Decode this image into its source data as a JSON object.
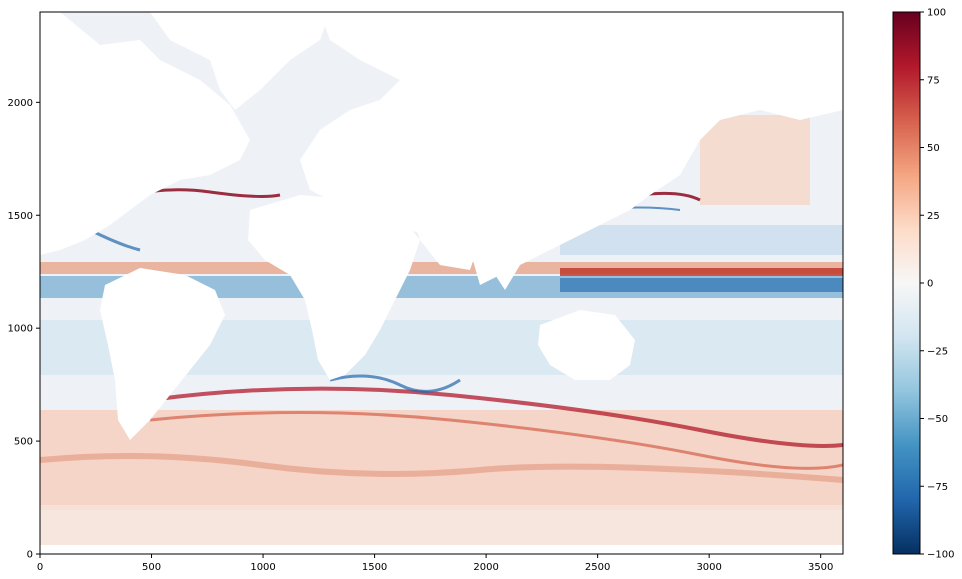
{
  "chart_data": {
    "type": "heatmap",
    "title": "",
    "xlabel": "",
    "ylabel": "",
    "xlim": [
      0,
      3600
    ],
    "ylim": [
      0,
      2400
    ],
    "x_ticks": [
      0,
      500,
      1000,
      1500,
      2000,
      2500,
      3000,
      3500
    ],
    "y_ticks": [
      0,
      500,
      1000,
      1500,
      2000
    ],
    "colorbar": {
      "colormap": "RdBu_r",
      "range": [
        -100,
        100
      ],
      "ticks": [
        100,
        75,
        50,
        25,
        0,
        -25,
        -50,
        -75,
        -100
      ],
      "colors": [
        "#053061",
        "#2166ac",
        "#4393c3",
        "#92c5de",
        "#d1e5f0",
        "#f7f7f7",
        "#fddbc7",
        "#f4a582",
        "#d6604d",
        "#b2182b",
        "#67001f"
      ]
    },
    "land_color": "#ffffff",
    "grid": false,
    "features": [
      {
        "band": "equatorial",
        "y": 1260,
        "value": 75
      },
      {
        "band": "equatorial",
        "y": 1200,
        "value": -60
      },
      {
        "band": "gulf-stream",
        "y": 1600,
        "value": 100
      },
      {
        "band": "kuroshio",
        "y": 1560,
        "value": 100
      },
      {
        "band": "southern-ocean",
        "y": 600,
        "value": 60
      },
      {
        "band": "southern-ocean",
        "y": 480,
        "value": 40
      }
    ]
  }
}
